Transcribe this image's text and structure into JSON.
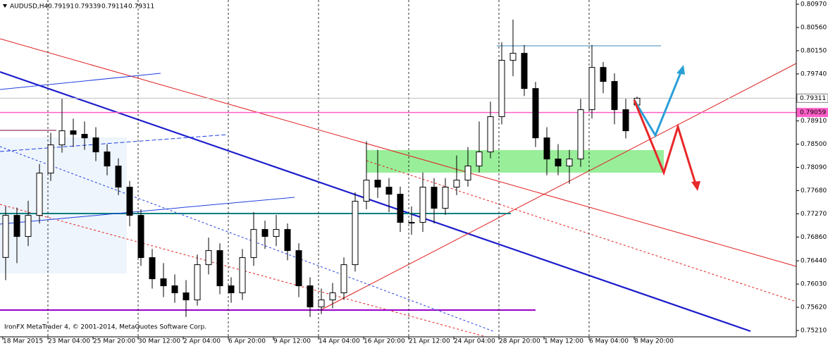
{
  "chart_data": {
    "type": "candlestick",
    "title": "AUDUSD,H4",
    "footer": "IronFX MetaTrader 4, © 2001-2014, MetaQuotes Software Corp.",
    "categories": [
      "18 Mar 2015",
      null,
      null,
      null,
      "23 Mar 04:00",
      null,
      null,
      null,
      "25 Mar 20:00",
      null,
      null,
      null,
      "30 Mar 12:00",
      null,
      null,
      null,
      "2 Apr 04:00",
      null,
      null,
      null,
      "6 Apr 20:00",
      null,
      null,
      null,
      "9 Apr 12:00",
      null,
      null,
      null,
      "14 Apr 04:00",
      null,
      null,
      null,
      "16 Apr 20:00",
      null,
      null,
      null,
      "21 Apr 12:00",
      null,
      null,
      null,
      "24 Apr 04:00",
      null,
      null,
      null,
      "28 Apr 20:00",
      null,
      null,
      null,
      "1 May 12:00",
      null,
      null,
      null,
      "6 May 04:00",
      null,
      null,
      null,
      "8 May 20:00"
    ],
    "open": [
      0.765,
      0.77243,
      0.7687,
      0.77243,
      0.77989,
      0.78487,
      0.78736,
      0.78674,
      0.78611,
      0.78363,
      0.78114,
      0.77741,
      0.77243,
      0.76497,
      0.76123,
      0.75999,
      0.75875,
      0.7575,
      0.76372,
      0.76621,
      0.75999,
      0.75875,
      0.76497,
      0.76994,
      0.7687,
      0.76994,
      0.76621,
      0.75999,
      0.75626,
      0.7575,
      0.75875,
      0.76372,
      0.77492,
      0.77865,
      0.77741,
      0.77616,
      0.77119,
      0.77119,
      0.77741,
      0.77368,
      0.77741,
      0.77865,
      0.78114,
      0.78363,
      0.78985,
      0.7998,
      0.80104,
      0.79482,
      0.78611,
      0.78238,
      0.78114,
      0.78238,
      0.79109,
      0.79855,
      0.79607,
      0.79109,
      0.79191
    ],
    "high": [
      0.774,
      0.7738,
      0.775,
      0.7815,
      0.787,
      0.793,
      0.7895,
      0.789,
      0.788,
      0.785,
      0.7825,
      0.7785,
      0.7735,
      0.7665,
      0.764,
      0.762,
      0.761,
      0.7655,
      0.7685,
      0.7675,
      0.7615,
      0.7665,
      0.773,
      0.7715,
      0.7725,
      0.771,
      0.7675,
      0.7615,
      0.7595,
      0.7605,
      0.765,
      0.7765,
      0.7855,
      0.784,
      0.779,
      0.7775,
      0.774,
      0.78,
      0.779,
      0.779,
      0.783,
      0.7845,
      0.789,
      0.7925,
      0.803,
      0.807,
      0.8025,
      0.796,
      0.788,
      0.785,
      0.784,
      0.793,
      0.8025,
      0.7995,
      0.7975,
      0.793,
      0.79339
    ],
    "low": [
      0.761,
      0.764,
      0.767,
      0.771,
      0.7785,
      0.7835,
      0.7845,
      0.784,
      0.782,
      0.7795,
      0.776,
      0.7705,
      0.7635,
      0.7595,
      0.758,
      0.757,
      0.7545,
      0.7565,
      0.762,
      0.7585,
      0.757,
      0.7575,
      0.7635,
      0.7665,
      0.767,
      0.7645,
      0.758,
      0.7545,
      0.755,
      0.756,
      0.7575,
      0.7625,
      0.7735,
      0.7755,
      0.773,
      0.7695,
      0.769,
      0.7695,
      0.771,
      0.7725,
      0.776,
      0.7775,
      0.78,
      0.7825,
      0.7885,
      0.797,
      0.7935,
      0.7845,
      0.7795,
      0.7795,
      0.778,
      0.781,
      0.7895,
      0.794,
      0.7885,
      0.786,
      0.79114
    ],
    "close": [
      0.77243,
      0.7687,
      0.77243,
      0.77989,
      0.78487,
      0.78736,
      0.78674,
      0.78611,
      0.78363,
      0.78114,
      0.77741,
      0.77243,
      0.76497,
      0.76123,
      0.75999,
      0.75875,
      0.7575,
      0.76372,
      0.76621,
      0.75999,
      0.75875,
      0.76497,
      0.76994,
      0.7687,
      0.76994,
      0.76621,
      0.75999,
      0.75626,
      0.7575,
      0.75875,
      0.76372,
      0.77492,
      0.77865,
      0.77741,
      0.77616,
      0.77119,
      0.77119,
      0.77741,
      0.77368,
      0.77741,
      0.77865,
      0.78114,
      0.78363,
      0.78985,
      0.7998,
      0.80104,
      0.79482,
      0.78611,
      0.78238,
      0.78114,
      0.78238,
      0.79109,
      0.79855,
      0.79607,
      0.79109,
      0.78736,
      0.79311
    ],
    "ylim": [
      0.75098,
      0.81045
    ],
    "yticks": [
      {
        "value": 0.8097,
        "label": "0.80970"
      },
      {
        "value": 0.8056,
        "label": "0.80560"
      },
      {
        "value": 0.8015,
        "label": "0.80150"
      },
      {
        "value": 0.7974,
        "label": "0.79740"
      },
      {
        "value": 0.7891,
        "label": "0.78910"
      },
      {
        "value": 0.785,
        "label": "0.78500"
      },
      {
        "value": 0.7809,
        "label": "0.78090"
      },
      {
        "value": 0.7768,
        "label": "0.77680"
      },
      {
        "value": 0.7727,
        "label": "0.77270"
      },
      {
        "value": 0.7686,
        "label": "0.76860"
      },
      {
        "value": 0.7644,
        "label": "0.76440"
      },
      {
        "value": 0.7603,
        "label": "0.76030"
      },
      {
        "value": 0.7562,
        "label": "0.75620"
      },
      {
        "value": 0.7521,
        "label": "0.75210"
      }
    ],
    "price_lines": [
      {
        "value": 0.79311,
        "color": "#c0c0c0"
      },
      {
        "value": 0.79059,
        "color": "#ff5fc8"
      }
    ],
    "up_color": "#ffffff",
    "down_color": "#000000"
  }
}
